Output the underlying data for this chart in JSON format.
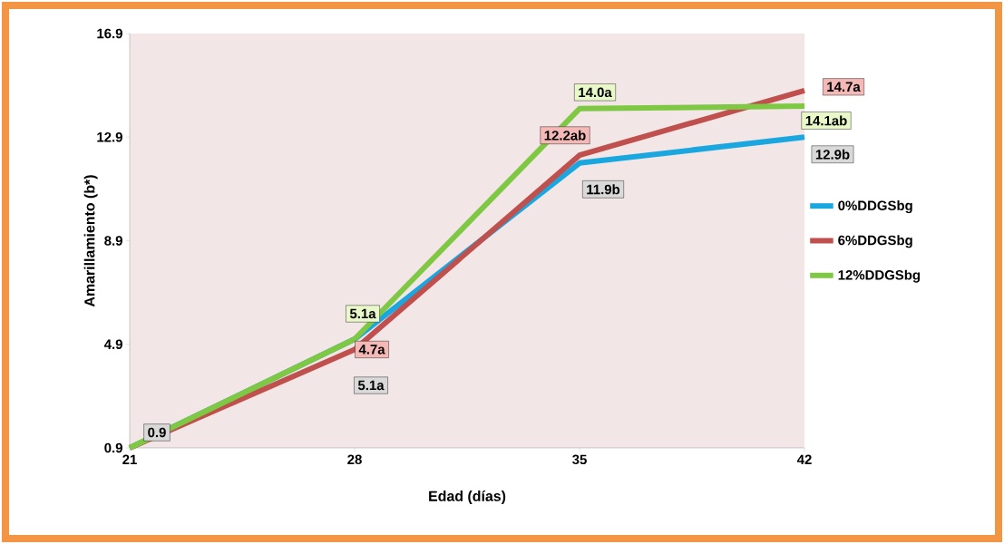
{
  "chart_data": {
    "type": "line",
    "xlabel": "Edad (días)",
    "ylabel": "Amarillamiento (b*)",
    "xlim": [
      21,
      42
    ],
    "xticks": [
      21,
      28,
      35,
      42
    ],
    "ylim": [
      0.9,
      16.9
    ],
    "yticks": [
      0.9,
      4.9,
      8.9,
      12.9,
      16.9
    ],
    "x": [
      21,
      28,
      35,
      42
    ],
    "legend": "right",
    "grid": false,
    "marker": "none",
    "line_style": "solid",
    "series": [
      {
        "name": "0%DDGSbg",
        "color": "#1aa7e0",
        "values": [
          0.9,
          5.1,
          11.9,
          12.9
        ],
        "value_labels": [
          "0.9",
          "5.1a",
          "11.9b",
          "12.9b"
        ]
      },
      {
        "name": "6%DDGSbg",
        "color": "#c0504d",
        "values": [
          0.9,
          4.7,
          12.2,
          14.7
        ],
        "value_labels": [
          null,
          "4.7a",
          "12.2ab",
          "14.7a"
        ]
      },
      {
        "name": "12%DDGSbg",
        "color": "#7ec843",
        "values": [
          0.9,
          5.1,
          14.0,
          14.1
        ],
        "value_labels": [
          null,
          "5.1a",
          "14.0a",
          "14.1ab"
        ]
      }
    ]
  }
}
